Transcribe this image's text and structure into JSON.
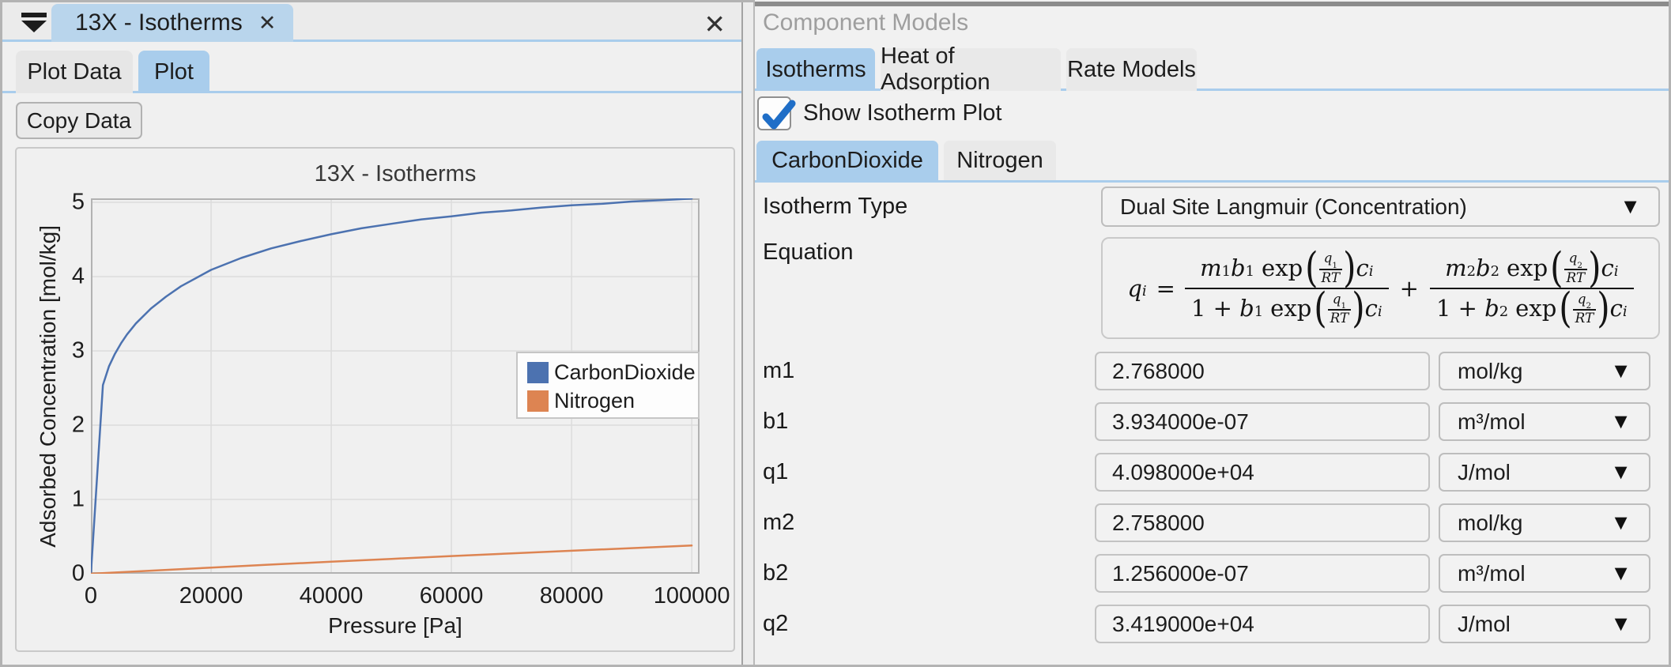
{
  "icons": {
    "dropdown_arrow": "▼",
    "close": "✕"
  },
  "left_panel": {
    "doc_tab": {
      "label": "13X - Isotherms"
    },
    "tabs": [
      {
        "label": "Plot Data",
        "selected": false
      },
      {
        "label": "Plot",
        "selected": true
      }
    ],
    "copy_button": "Copy Data"
  },
  "right_panel": {
    "title": "Component Models",
    "tabs": [
      {
        "label": "Isotherms",
        "selected": true
      },
      {
        "label": "Heat of Adsorption",
        "selected": false
      },
      {
        "label": "Rate Models",
        "selected": false
      }
    ],
    "checkbox": {
      "label": "Show Isotherm Plot",
      "checked": true
    },
    "component_tabs": [
      {
        "label": "CarbonDioxide",
        "selected": true
      },
      {
        "label": "Nitrogen",
        "selected": false
      }
    ],
    "isotherm_type": {
      "label": "Isotherm Type",
      "value": "Dual Site Langmuir (Concentration)"
    },
    "equation_label": "Equation",
    "equation": {
      "lhs_var": "q",
      "lhs_sub": "i",
      "equals": "=",
      "plus": "+",
      "exp": "exp",
      "one_plus": "1 +",
      "terms": [
        {
          "m": "m",
          "m_sub": "1",
          "b": "b",
          "b_sub": "1",
          "q": "q",
          "q_sub": "1",
          "rt": "RT",
          "c": "c",
          "c_sub": "i"
        },
        {
          "m": "m",
          "m_sub": "2",
          "b": "b",
          "b_sub": "2",
          "q": "q",
          "q_sub": "2",
          "rt": "RT",
          "c": "c",
          "c_sub": "i"
        }
      ]
    },
    "parameters": [
      {
        "name": "m1",
        "value": "2.768000",
        "unit": "mol/kg"
      },
      {
        "name": "b1",
        "value": "3.934000e-07",
        "unit": "m³/mol"
      },
      {
        "name": "q1",
        "value": "4.098000e+04",
        "unit": "J/mol"
      },
      {
        "name": "m2",
        "value": "2.758000",
        "unit": "mol/kg"
      },
      {
        "name": "b2",
        "value": "1.256000e-07",
        "unit": "m³/mol"
      },
      {
        "name": "q2",
        "value": "3.419000e+04",
        "unit": "J/mol"
      }
    ]
  },
  "chart_data": {
    "type": "line",
    "title": "13X - Isotherms",
    "xlabel": "Pressure [Pa]",
    "ylabel": "Adsorbed Concentration [mol/kg]",
    "xlim": [
      0,
      101300
    ],
    "ylim": [
      0,
      5.053
    ],
    "x_ticks": [
      0,
      20000,
      40000,
      60000,
      80000,
      100000
    ],
    "y_ticks": [
      0,
      1,
      2,
      3,
      4,
      5
    ],
    "grid": true,
    "legend_position": "center-right",
    "series": [
      {
        "name": "CarbonDioxide",
        "color": "#4C72B0",
        "points": [
          [
            0,
            0
          ],
          [
            2000,
            2.54
          ],
          [
            3000,
            2.79
          ],
          [
            4000,
            2.96
          ],
          [
            5000,
            3.1
          ],
          [
            6000,
            3.22
          ],
          [
            7500,
            3.37
          ],
          [
            10000,
            3.57
          ],
          [
            12500,
            3.73
          ],
          [
            15000,
            3.87
          ],
          [
            20000,
            4.09
          ],
          [
            25000,
            4.25
          ],
          [
            30000,
            4.38
          ],
          [
            35000,
            4.48
          ],
          [
            40000,
            4.57
          ],
          [
            45000,
            4.65
          ],
          [
            50000,
            4.71
          ],
          [
            55000,
            4.77
          ],
          [
            60000,
            4.81
          ],
          [
            65000,
            4.86
          ],
          [
            70000,
            4.89
          ],
          [
            75000,
            4.93
          ],
          [
            80000,
            4.96
          ],
          [
            85000,
            4.98
          ],
          [
            90000,
            5.01
          ],
          [
            95000,
            5.03
          ],
          [
            100000,
            5.05
          ]
        ]
      },
      {
        "name": "Nitrogen",
        "color": "#DD8452",
        "points": [
          [
            0,
            0
          ],
          [
            10000,
            0.042
          ],
          [
            20000,
            0.083
          ],
          [
            30000,
            0.123
          ],
          [
            40000,
            0.162
          ],
          [
            50000,
            0.2
          ],
          [
            60000,
            0.238
          ],
          [
            70000,
            0.274
          ],
          [
            80000,
            0.31
          ],
          [
            90000,
            0.345
          ],
          [
            100000,
            0.38
          ]
        ]
      }
    ]
  }
}
